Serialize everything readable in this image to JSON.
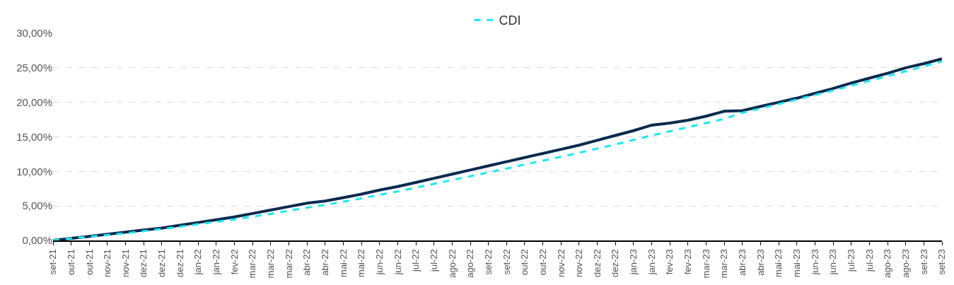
{
  "chart_data": {
    "type": "line",
    "categories": [
      "set-21",
      "out-21",
      "out-21",
      "nov-21",
      "nov-21",
      "dez-21",
      "dez-21",
      "dez-21",
      "jan-22",
      "jan-22",
      "fev-22",
      "mar-22",
      "mar-22",
      "mar-22",
      "abr-22",
      "abr-22",
      "mai-22",
      "mai-22",
      "jun-22",
      "jun-22",
      "jul-22",
      "jul-22",
      "ago-22",
      "ago-22",
      "set-22",
      "set-22",
      "out-22",
      "out-22",
      "nov-22",
      "nov-22",
      "dez-22",
      "dez-22",
      "jan-23",
      "jan-23",
      "fev-23",
      "fev-23",
      "mar-23",
      "mar-23",
      "abr-23",
      "abr-23",
      "mai-23",
      "mai-23",
      "jun-23",
      "jun-23",
      "jul-23",
      "jul-23",
      "ago-23",
      "ago-23",
      "set-23",
      "set-23"
    ],
    "series": [
      {
        "color": "#062a4e",
        "line_style": "solid",
        "values": [
          0,
          0.3,
          0.6,
          0.9,
          1.2,
          1.5,
          1.8,
          2.2,
          2.6,
          3.0,
          3.4,
          3.9,
          4.4,
          4.9,
          5.4,
          5.7,
          6.2,
          6.7,
          7.3,
          7.8,
          8.4,
          9.0,
          9.6,
          10.2,
          10.8,
          11.4,
          12.0,
          12.6,
          13.2,
          13.8,
          14.5,
          15.2,
          15.9,
          16.7,
          17.0,
          17.4,
          18.0,
          18.7,
          18.8,
          19.4,
          20.0,
          20.6,
          21.3,
          22.0,
          22.8,
          23.5,
          24.2,
          25.0,
          25.6,
          26.3
        ]
      },
      {
        "name": "CDI",
        "color": "#1ee6f0",
        "line_style": "dashed",
        "values": [
          0,
          0.3,
          0.55,
          0.8,
          1.05,
          1.35,
          1.65,
          2.0,
          2.35,
          2.7,
          3.05,
          3.45,
          3.85,
          4.3,
          4.75,
          5.15,
          5.6,
          6.1,
          6.6,
          7.1,
          7.65,
          8.2,
          8.75,
          9.3,
          9.85,
          10.4,
          11.0,
          11.55,
          12.1,
          12.7,
          13.3,
          13.9,
          14.55,
          15.2,
          15.8,
          16.4,
          17.0,
          17.6,
          18.5,
          19.1,
          19.75,
          20.4,
          21.05,
          21.7,
          22.4,
          23.1,
          23.8,
          24.5,
          25.2,
          25.9
        ]
      }
    ],
    "ylim": [
      0,
      30
    ],
    "yticks": [
      {
        "value": 0,
        "label": "0,00%"
      },
      {
        "value": 5,
        "label": "5,00%"
      },
      {
        "value": 10,
        "label": "10,00%"
      },
      {
        "value": 15,
        "label": "15,00%"
      },
      {
        "value": 20,
        "label": "20,00%"
      },
      {
        "value": 25,
        "label": "25,00%"
      },
      {
        "value": 30,
        "label": "30,00%"
      }
    ],
    "grid": "y",
    "legend": "top",
    "marker": "none"
  }
}
